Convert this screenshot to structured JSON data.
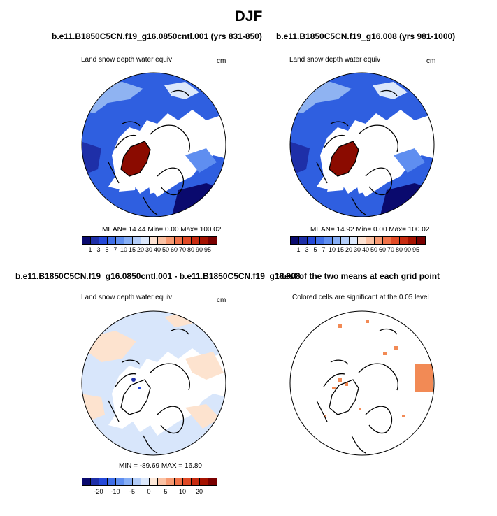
{
  "figure": {
    "title": "DJF",
    "panels": [
      {
        "id": "top-left",
        "title": "b.e11.B1850C5CN.f19_g16.0850cntl.001 (yrs 831-850)",
        "variable": "Land snow depth water equiv",
        "units": "cm",
        "stats": "MEAN= 14.44  Min=  0.00  Max= 100.02"
      },
      {
        "id": "top-right",
        "title": "b.e11.B1850C5CN.f19_g16.008 (yrs 981-1000)",
        "variable": "Land snow depth water equiv",
        "units": "cm",
        "stats": "MEAN= 14.92  Min=  0.00  Max= 100.02"
      },
      {
        "id": "bottom-left",
        "title": "b.e11.B1850C5CN.f19_g16.0850cntl.001 - b.e11.B1850C5CN.f19_g16.008",
        "variable": "Land snow depth water equiv",
        "units": "cm",
        "stats": "MIN = -89.69 MAX =  16.80"
      },
      {
        "id": "bottom-right",
        "title": "t-test of the two means at each grid point",
        "subtitle": "Colored cells are significant at the 0.05 level"
      }
    ],
    "colorbar_top": {
      "colors": [
        "#0a0a6e",
        "#1e2fa8",
        "#2448d8",
        "#3f6ee8",
        "#5f8ef0",
        "#86aef5",
        "#b3cdf8",
        "#dce8fb",
        "#fde2d2",
        "#fbc2a4",
        "#f79a72",
        "#f07248",
        "#e04a26",
        "#c72b10",
        "#a51200",
        "#7a0000"
      ],
      "labels": [
        "1",
        "3",
        "5",
        "7",
        "10",
        "15",
        "20",
        "30",
        "40",
        "50",
        "60",
        "70",
        "80",
        "90",
        "95"
      ]
    },
    "colorbar_bottom": {
      "colors": [
        "#0a0a6e",
        "#1e2fa8",
        "#2448d8",
        "#3f6ee8",
        "#5f8ef0",
        "#86aef5",
        "#b3cdf8",
        "#dce8fb",
        "#fde8d8",
        "#fbc2a4",
        "#f79a72",
        "#f07248",
        "#e04a26",
        "#c72b10",
        "#a51200",
        "#7a0000"
      ],
      "labels": [
        "-20",
        "-10",
        "-5",
        "0",
        "5",
        "10",
        "20"
      ],
      "label_cells": [
        2,
        4,
        6,
        8,
        10,
        12,
        14
      ]
    },
    "map_colors": {
      "ocean": "#ffffff",
      "snow_blue_dark": "#1e2fa8",
      "snow_blue_mid": "#2f5fe0",
      "snow_blue_light": "#8fb3f2",
      "greenland": "#8b0b00",
      "diff_blue": "#d8e6fb",
      "diff_orange": "#fde3cf",
      "sig_orange": "#f28a55"
    }
  }
}
